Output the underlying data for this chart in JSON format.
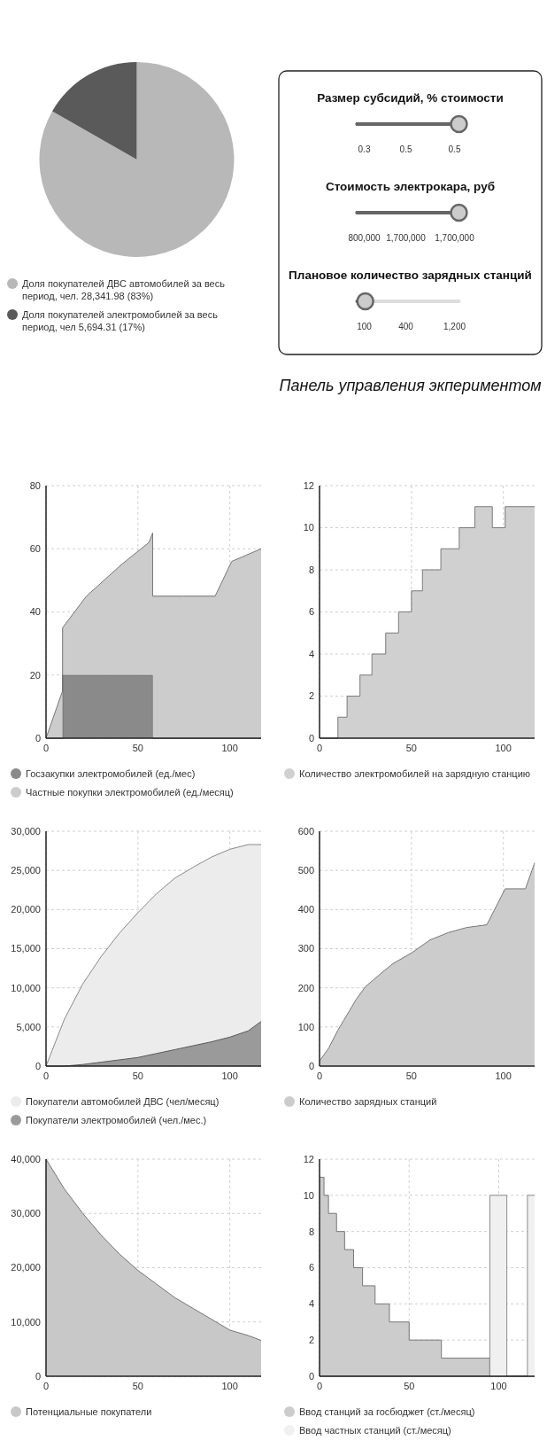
{
  "chart_data": [
    {
      "type": "area",
      "x": [
        0,
        10,
        20,
        30,
        40,
        50,
        60,
        70,
        80,
        90,
        100,
        110,
        117
      ],
      "xlim": [
        0,
        117
      ],
      "xticks": [
        0,
        50,
        100
      ],
      "ylim": [
        0,
        40000
      ],
      "yticks": [
        0,
        {
          "value": 10000,
          "label": "10,000"
        },
        {
          "value": 20000,
          "label": "20,000"
        },
        {
          "value": 30000,
          "label": "30,000"
        },
        {
          "value": 40000,
          "label": "40,000"
        }
      ],
      "grid": true,
      "legend": "bottom",
      "series": [
        {
          "name": "Потенциальные покупатели",
          "color": "#c8c8c8",
          "values": [
            40000,
            34500,
            30000,
            26000,
            22500,
            19500,
            17000,
            14500,
            12500,
            10500,
            8500,
            7500,
            6600
          ]
        }
      ]
    },
    {
      "type": "area",
      "x": [
        0,
        10,
        20,
        30,
        40,
        50,
        60,
        70,
        80,
        90,
        100,
        110,
        117
      ],
      "xlim": [
        0,
        117
      ],
      "xticks": [
        0,
        50,
        100
      ],
      "ylim": [
        0,
        30000
      ],
      "yticks": [
        0,
        {
          "value": 5000,
          "label": "5,000"
        },
        {
          "value": 10000,
          "label": "10,000"
        },
        {
          "value": 15000,
          "label": "15,000"
        },
        {
          "value": 20000,
          "label": "20,000"
        },
        {
          "value": 25000,
          "label": "25,000"
        },
        {
          "value": 30000,
          "label": "30,000"
        }
      ],
      "grid": true,
      "legend": "bottom",
      "series": [
        {
          "name": "Покупатели автомобилей ДВС (чел/месяц)",
          "color": "#ececec",
          "values": [
            0,
            6000,
            10500,
            14000,
            17000,
            19600,
            22000,
            24000,
            25400,
            26700,
            27700,
            28300,
            28300
          ]
        },
        {
          "name": "Покупатели электромобилей (чел./мес.)",
          "color": "#9a9a9a",
          "values": [
            0,
            0,
            200,
            500,
            800,
            1100,
            1600,
            2100,
            2600,
            3100,
            3700,
            4500,
            5700
          ]
        }
      ]
    },
    {
      "type": "area",
      "stacked": true,
      "x": [
        0,
        9,
        9,
        22,
        41,
        56,
        58,
        58,
        75,
        92,
        101,
        117
      ],
      "xlim": [
        0,
        117
      ],
      "xticks": [
        0,
        50,
        100
      ],
      "ylim": [
        0,
        80
      ],
      "yticks": [
        0,
        20,
        40,
        60,
        80
      ],
      "grid": true,
      "legend": "bottom",
      "series": [
        {
          "name": "Госзакупки электромобилей (ед./мес)",
          "color": "#8a8a8a",
          "values": [
            0,
            0,
            20,
            20,
            20,
            20,
            20,
            0,
            0,
            0,
            0,
            0
          ]
        },
        {
          "name": "Частные покупки электромобилей (ед./месяц)",
          "color": "#cccccc",
          "values": [
            0,
            15,
            15,
            25,
            35,
            42,
            45,
            45,
            45,
            45,
            56,
            60
          ]
        }
      ]
    },
    {
      "type": "pie",
      "categories": [
        "Доля покупателей ДВС автомобилей за весь период, чел.",
        "Доля покупателей электромобилей за весь период, чел"
      ],
      "values": [
        28341.98,
        5694.31
      ],
      "value_labels": [
        "28,341.98 (83%)",
        "5,694.31 (17%)"
      ],
      "colors": [
        "#b8b8b8",
        "#5a5a5a"
      ],
      "legend": "bottom"
    },
    {
      "type": "area",
      "xlim": [
        0,
        120
      ],
      "xticks": [
        0,
        50,
        100
      ],
      "ylim": [
        0,
        12
      ],
      "yticks": [
        0,
        2,
        4,
        6,
        8,
        10,
        12
      ],
      "grid": true,
      "legend": "bottom",
      "series": [
        {
          "name": "Ввод станций за госбюджет (ст./месяц)",
          "color": "#cccccc",
          "x": [
            0,
            2.5,
            2.5,
            5,
            5,
            9.5,
            9.5,
            14,
            14,
            19,
            19,
            24,
            24,
            31,
            31,
            39,
            39,
            50,
            50,
            68,
            68,
            95,
            95,
            120
          ],
          "values": [
            11,
            11,
            10,
            10,
            9,
            9,
            8,
            8,
            7,
            7,
            6,
            6,
            5,
            5,
            4,
            4,
            3,
            3,
            2,
            2,
            1,
            1,
            0,
            0
          ]
        },
        {
          "name": "Ввод частных станций (ст./месяц)",
          "color": "#f0f0f0",
          "x": [
            0,
            95,
            95,
            104.5,
            104.5,
            116,
            116,
            120
          ],
          "values": [
            0,
            0,
            10,
            10,
            0,
            0,
            10,
            10
          ]
        }
      ]
    },
    {
      "type": "area",
      "x": [
        0,
        5,
        10,
        15,
        20,
        25,
        35,
        40,
        50,
        60,
        70,
        80,
        91,
        101,
        112,
        117
      ],
      "xlim": [
        0,
        117
      ],
      "xticks": [
        0,
        50,
        100
      ],
      "ylim": [
        0,
        600
      ],
      "yticks": [
        0,
        100,
        200,
        300,
        400,
        500,
        600
      ],
      "grid": true,
      "legend": "bottom",
      "series": [
        {
          "name": "Количество зарядных станций",
          "color": "#cccccc",
          "values": [
            13,
            46,
            92,
            131,
            171,
            203,
            243,
            262,
            289,
            322,
            341,
            354,
            361,
            453,
            453,
            519
          ]
        }
      ]
    },
    {
      "type": "area",
      "x": [
        0,
        10,
        10,
        15,
        15,
        22,
        22,
        28.5,
        28.5,
        36,
        36,
        43,
        43,
        50,
        50,
        56,
        56,
        66,
        66,
        76,
        76,
        84.5,
        84.5,
        94,
        94,
        101,
        101,
        117
      ],
      "xlim": [
        0,
        117
      ],
      "xticks": [
        0,
        50,
        100
      ],
      "ylim": [
        0,
        12
      ],
      "yticks": [
        0,
        2,
        4,
        6,
        8,
        10,
        12
      ],
      "grid": true,
      "legend": "bottom",
      "series": [
        {
          "name": "Количество электромобилей на зарядную станцию",
          "color": "#d0d0d0",
          "values": [
            0,
            0,
            1,
            1,
            2,
            2,
            3,
            3,
            4,
            4,
            5,
            5,
            6,
            6,
            7,
            7,
            8,
            8,
            9,
            9,
            10,
            10,
            11,
            11,
            10,
            10,
            11,
            11
          ]
        }
      ]
    },
    {
      "type": "other",
      "title": "Панель управления экпериментом",
      "annotations": [
        "Размер субсидий, % стоимости",
        "0.3",
        "0.5",
        "0.5",
        "Стоимость электрокара, руб",
        "800,000",
        "1,700,000",
        "1,700,000",
        "Плановое количество зарядных станций",
        "100",
        "400",
        "1,200"
      ]
    }
  ]
}
